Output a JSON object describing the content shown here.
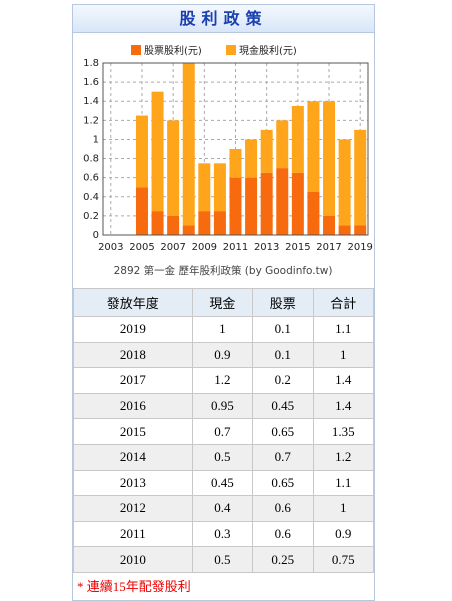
{
  "header": {
    "title": "股利政策"
  },
  "chart_data": {
    "type": "bar",
    "stacked": true,
    "caption": "2892 第一金 歷年股利政策 (by Goodinfo.tw)",
    "categories": [
      "2003",
      null,
      "2005",
      null,
      "2007",
      null,
      "2009",
      null,
      "2011",
      null,
      "2013",
      null,
      "2015",
      null,
      "2017",
      null,
      "2019"
    ],
    "series": [
      {
        "name": "股票股利(元)",
        "color": "#f76b0e",
        "values": [
          null,
          null,
          0.5,
          0.25,
          0.2,
          0.1,
          0.25,
          0.25,
          0.6,
          0.6,
          0.65,
          0.7,
          0.65,
          0.45,
          0.2,
          0.1,
          0.1
        ]
      },
      {
        "name": "現金股利(元)",
        "color": "#fea51c",
        "values": [
          null,
          null,
          0.75,
          1.25,
          1.0,
          1.7,
          0.5,
          0.5,
          0.3,
          0.4,
          0.45,
          0.5,
          0.7,
          0.95,
          1.2,
          0.9,
          1.0
        ]
      }
    ],
    "ylim": [
      0,
      1.8
    ],
    "yticks": [
      0,
      0.2,
      0.4,
      0.6,
      0.8,
      1,
      1.2,
      1.4,
      1.6,
      1.8
    ],
    "grid": true
  },
  "table": {
    "columns": [
      "發放年度",
      "現金",
      "股票",
      "合計"
    ],
    "rows": [
      [
        2019,
        1,
        0.1,
        1.1
      ],
      [
        2018,
        0.9,
        0.1,
        1
      ],
      [
        2017,
        1.2,
        0.2,
        1.4
      ],
      [
        2016,
        0.95,
        0.45,
        1.4
      ],
      [
        2015,
        0.7,
        0.65,
        1.35
      ],
      [
        2014,
        0.5,
        0.7,
        1.2
      ],
      [
        2013,
        0.45,
        0.65,
        1.1
      ],
      [
        2012,
        0.4,
        0.6,
        1
      ],
      [
        2011,
        0.3,
        0.6,
        0.9
      ],
      [
        2010,
        0.5,
        0.25,
        0.75
      ]
    ]
  },
  "footer": {
    "note": "* 連續15年配發股利"
  }
}
